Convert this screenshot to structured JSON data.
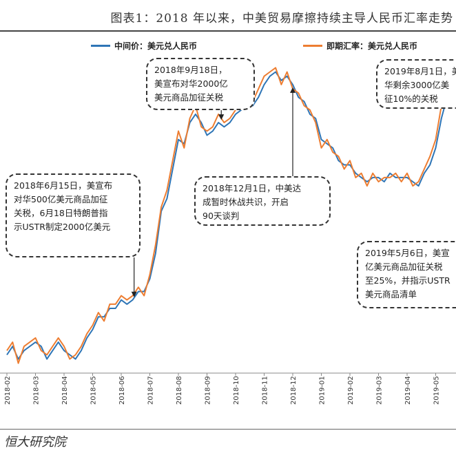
{
  "title": "图表1：2018 年以来，中美贸易摩擦持续主导人民币汇率走势",
  "source": "恒大研究院",
  "chart_data": {
    "type": "line",
    "x_ticks": [
      "2018-02",
      "2018-03",
      "2018-04",
      "2018-05",
      "2018-06",
      "2018-07",
      "2018-08",
      "2018-09",
      "2018-10",
      "2018-11",
      "2018-12",
      "2019-01",
      "2019-02",
      "2019-03",
      "2019-04",
      "2019-05"
    ],
    "ylim": [
      6.25,
      7.0
    ],
    "series": [
      {
        "name": "中间价：美元兑人民币",
        "color": "#2e75b6",
        "points": [
          [
            0,
            6.29
          ],
          [
            0.2,
            6.31
          ],
          [
            0.4,
            6.28
          ],
          [
            0.6,
            6.3
          ],
          [
            0.8,
            6.31
          ],
          [
            1,
            6.32
          ],
          [
            1.2,
            6.31
          ],
          [
            1.4,
            6.28
          ],
          [
            1.6,
            6.3
          ],
          [
            1.8,
            6.32
          ],
          [
            2,
            6.3
          ],
          [
            2.2,
            6.29
          ],
          [
            2.4,
            6.28
          ],
          [
            2.6,
            6.3
          ],
          [
            2.8,
            6.33
          ],
          [
            3,
            6.35
          ],
          [
            3.2,
            6.38
          ],
          [
            3.4,
            6.38
          ],
          [
            3.6,
            6.4
          ],
          [
            3.8,
            6.4
          ],
          [
            4,
            6.42
          ],
          [
            4.2,
            6.41
          ],
          [
            4.4,
            6.42
          ],
          [
            4.6,
            6.44
          ],
          [
            4.8,
            6.44
          ],
          [
            5,
            6.47
          ],
          [
            5.2,
            6.53
          ],
          [
            5.4,
            6.63
          ],
          [
            5.6,
            6.66
          ],
          [
            5.8,
            6.73
          ],
          [
            6,
            6.8
          ],
          [
            6.2,
            6.79
          ],
          [
            6.4,
            6.84
          ],
          [
            6.6,
            6.86
          ],
          [
            6.8,
            6.84
          ],
          [
            7,
            6.81
          ],
          [
            7.2,
            6.82
          ],
          [
            7.4,
            6.84
          ],
          [
            7.6,
            6.83
          ],
          [
            7.8,
            6.84
          ],
          [
            8,
            6.86
          ],
          [
            8.2,
            6.87
          ],
          [
            8.4,
            6.88
          ],
          [
            8.6,
            6.88
          ],
          [
            8.8,
            6.9
          ],
          [
            9,
            6.93
          ],
          [
            9.2,
            6.95
          ],
          [
            9.4,
            6.96
          ],
          [
            9.6,
            6.94
          ],
          [
            9.8,
            6.95
          ],
          [
            10,
            6.93
          ],
          [
            10.2,
            6.9
          ],
          [
            10.4,
            6.89
          ],
          [
            10.6,
            6.86
          ],
          [
            10.8,
            6.85
          ],
          [
            11,
            6.8
          ],
          [
            11.2,
            6.79
          ],
          [
            11.4,
            6.78
          ],
          [
            11.6,
            6.75
          ],
          [
            11.8,
            6.74
          ],
          [
            12,
            6.74
          ],
          [
            12.2,
            6.72
          ],
          [
            12.4,
            6.71
          ],
          [
            12.6,
            6.7
          ],
          [
            12.8,
            6.71
          ],
          [
            13,
            6.71
          ],
          [
            13.2,
            6.7
          ],
          [
            13.4,
            6.72
          ],
          [
            13.6,
            6.71
          ],
          [
            13.8,
            6.71
          ],
          [
            14,
            6.71
          ],
          [
            14.2,
            6.7
          ],
          [
            14.4,
            6.69
          ],
          [
            14.6,
            6.72
          ],
          [
            14.8,
            6.74
          ],
          [
            15,
            6.78
          ],
          [
            15.2,
            6.85
          ],
          [
            15.4,
            6.9
          ]
        ]
      },
      {
        "name": "即期汇率：美元兑人民币",
        "color": "#ed7d31",
        "points": [
          [
            0,
            6.3
          ],
          [
            0.2,
            6.32
          ],
          [
            0.4,
            6.27
          ],
          [
            0.6,
            6.31
          ],
          [
            0.8,
            6.32
          ],
          [
            1,
            6.33
          ],
          [
            1.2,
            6.3
          ],
          [
            1.4,
            6.29
          ],
          [
            1.6,
            6.31
          ],
          [
            1.8,
            6.33
          ],
          [
            2,
            6.31
          ],
          [
            2.2,
            6.28
          ],
          [
            2.4,
            6.29
          ],
          [
            2.6,
            6.31
          ],
          [
            2.8,
            6.34
          ],
          [
            3,
            6.36
          ],
          [
            3.2,
            6.39
          ],
          [
            3.4,
            6.37
          ],
          [
            3.6,
            6.41
          ],
          [
            3.8,
            6.41
          ],
          [
            4,
            6.43
          ],
          [
            4.2,
            6.42
          ],
          [
            4.4,
            6.43
          ],
          [
            4.6,
            6.45
          ],
          [
            4.8,
            6.43
          ],
          [
            5,
            6.48
          ],
          [
            5.2,
            6.55
          ],
          [
            5.4,
            6.64
          ],
          [
            5.6,
            6.68
          ],
          [
            5.8,
            6.75
          ],
          [
            6,
            6.82
          ],
          [
            6.2,
            6.78
          ],
          [
            6.4,
            6.85
          ],
          [
            6.6,
            6.88
          ],
          [
            6.8,
            6.83
          ],
          [
            7,
            6.82
          ],
          [
            7.2,
            6.83
          ],
          [
            7.4,
            6.86
          ],
          [
            7.6,
            6.84
          ],
          [
            7.8,
            6.85
          ],
          [
            8,
            6.87
          ],
          [
            8.2,
            6.89
          ],
          [
            8.4,
            6.9
          ],
          [
            8.6,
            6.89
          ],
          [
            8.8,
            6.92
          ],
          [
            9,
            6.95
          ],
          [
            9.2,
            6.96
          ],
          [
            9.4,
            6.97
          ],
          [
            9.6,
            6.93
          ],
          [
            9.8,
            6.96
          ],
          [
            10,
            6.92
          ],
          [
            10.2,
            6.91
          ],
          [
            10.4,
            6.88
          ],
          [
            10.6,
            6.87
          ],
          [
            10.8,
            6.84
          ],
          [
            11,
            6.78
          ],
          [
            11.2,
            6.8
          ],
          [
            11.4,
            6.77
          ],
          [
            11.6,
            6.76
          ],
          [
            11.8,
            6.73
          ],
          [
            12,
            6.75
          ],
          [
            12.2,
            6.71
          ],
          [
            12.4,
            6.72
          ],
          [
            12.6,
            6.69
          ],
          [
            12.8,
            6.72
          ],
          [
            13,
            6.7
          ],
          [
            13.2,
            6.71
          ],
          [
            13.4,
            6.71
          ],
          [
            13.6,
            6.72
          ],
          [
            13.8,
            6.7
          ],
          [
            14,
            6.72
          ],
          [
            14.2,
            6.69
          ],
          [
            14.4,
            6.7
          ],
          [
            14.6,
            6.73
          ],
          [
            14.8,
            6.76
          ],
          [
            15,
            6.8
          ],
          [
            15.2,
            6.88
          ],
          [
            15.4,
            6.92
          ]
        ]
      }
    ],
    "annotations": [
      {
        "text": "2018年6月15日，美宣布\n对华500亿美元商品加征\n关税，6月18日特朗普指\n示USTR制定2000亿美元",
        "arrow_x": 4.45
      },
      {
        "text": "2018年9月18日，\n美宣布对华2000亿\n美元商品加征关税",
        "arrow_x": 7.5
      },
      {
        "text": "2018年12月1日，中美达\n成暂时休战共识，开启\n90天谈判",
        "arrow_x": 10.0
      },
      {
        "text": "2019年8月1日，美\n华剩余3000亿美\n征10%的关税",
        "arrow_x": null
      },
      {
        "text": "2019年5月6日，美宣\n亿美元商品加征关税\n至25%，并指示USTR\n美元商品清单",
        "arrow_x": null
      }
    ]
  }
}
